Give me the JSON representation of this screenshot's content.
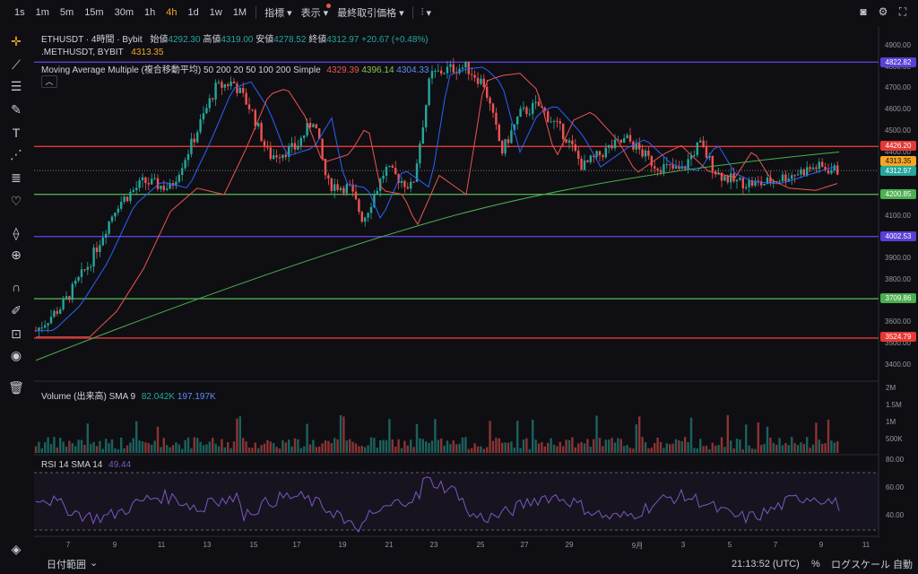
{
  "toolbar": {
    "timeframes": [
      {
        "label": "1s",
        "active": false
      },
      {
        "label": "1m",
        "active": false
      },
      {
        "label": "5m",
        "active": false
      },
      {
        "label": "15m",
        "active": false
      },
      {
        "label": "30m",
        "active": false
      },
      {
        "label": "1h",
        "active": false
      },
      {
        "label": "4h",
        "active": true
      },
      {
        "label": "1d",
        "active": false
      },
      {
        "label": "1w",
        "active": false
      },
      {
        "label": "1M",
        "active": false
      }
    ],
    "indicators_label": "指標",
    "view_label": "表示",
    "price_label": "最終取引価格"
  },
  "legend": {
    "symbol": "ETHUSDT · 4時間 · Bybit",
    "open_label": "始値",
    "open": "4292.30",
    "high_label": "高値",
    "high": "4319.00",
    "low_label": "安値",
    "low": "4278.52",
    "close_label": "終値",
    "close": "4312.97",
    "change": "+20.67 (+0.48%)",
    "index_symbol": ".METHUSDT, BYBIT",
    "index_value": "4313.35",
    "ma_label": "Moving Average Multiple (複合移動平均) 50 200 20 50 100 200 Simple",
    "ma_values": [
      "4329.39",
      "4396.14",
      "4304.33"
    ],
    "volume_label": "Volume (出来高) SMA 9",
    "volume_values": [
      "82.042K",
      "197.197K"
    ],
    "rsi_label": "RSI 14 SMA 14",
    "rsi_value": "49.44"
  },
  "price_axis": [
    "4900.00",
    "4800.00",
    "4700.00",
    "4600.00",
    "4500.00",
    "4400.00",
    "4300.00",
    "4200.00",
    "4100.00",
    "4000.00",
    "3900.00",
    "3800.00",
    "3700.00",
    "3600.00",
    "3500.00",
    "3400.00"
  ],
  "volume_axis": [
    "2M",
    "1.5M",
    "1M",
    "500K"
  ],
  "rsi_axis": [
    "80.00",
    "60.00",
    "40.00"
  ],
  "price_badges": [
    {
      "value": "4822.82",
      "color": "#5b3fd6"
    },
    {
      "value": "4426.20",
      "color": "#e53935"
    },
    {
      "value": "4313.35",
      "color": "#f5a623"
    },
    {
      "value": "4312.97",
      "color": "#26a69a"
    },
    {
      "value": "4200.85",
      "color": "#4caf50"
    },
    {
      "value": "4002.53",
      "color": "#5b3fd6"
    },
    {
      "value": "3709.86",
      "color": "#4caf50"
    },
    {
      "value": "3524.79",
      "color": "#e53935"
    }
  ],
  "x_axis": [
    "7",
    "9",
    "11",
    "13",
    "15",
    "17",
    "19",
    "21",
    "23",
    "25",
    "27",
    "29",
    "9月",
    "3",
    "5",
    "7",
    "9",
    "11"
  ],
  "bottom": {
    "date_range_label": "日付範囲",
    "time": "21:13:52 (UTC)",
    "percent": "%",
    "log_scale": "ログスケール",
    "auto": "自動"
  },
  "colors": {
    "up": "#26a69a",
    "down": "#ef5350",
    "accent": "#f5a623"
  }
}
